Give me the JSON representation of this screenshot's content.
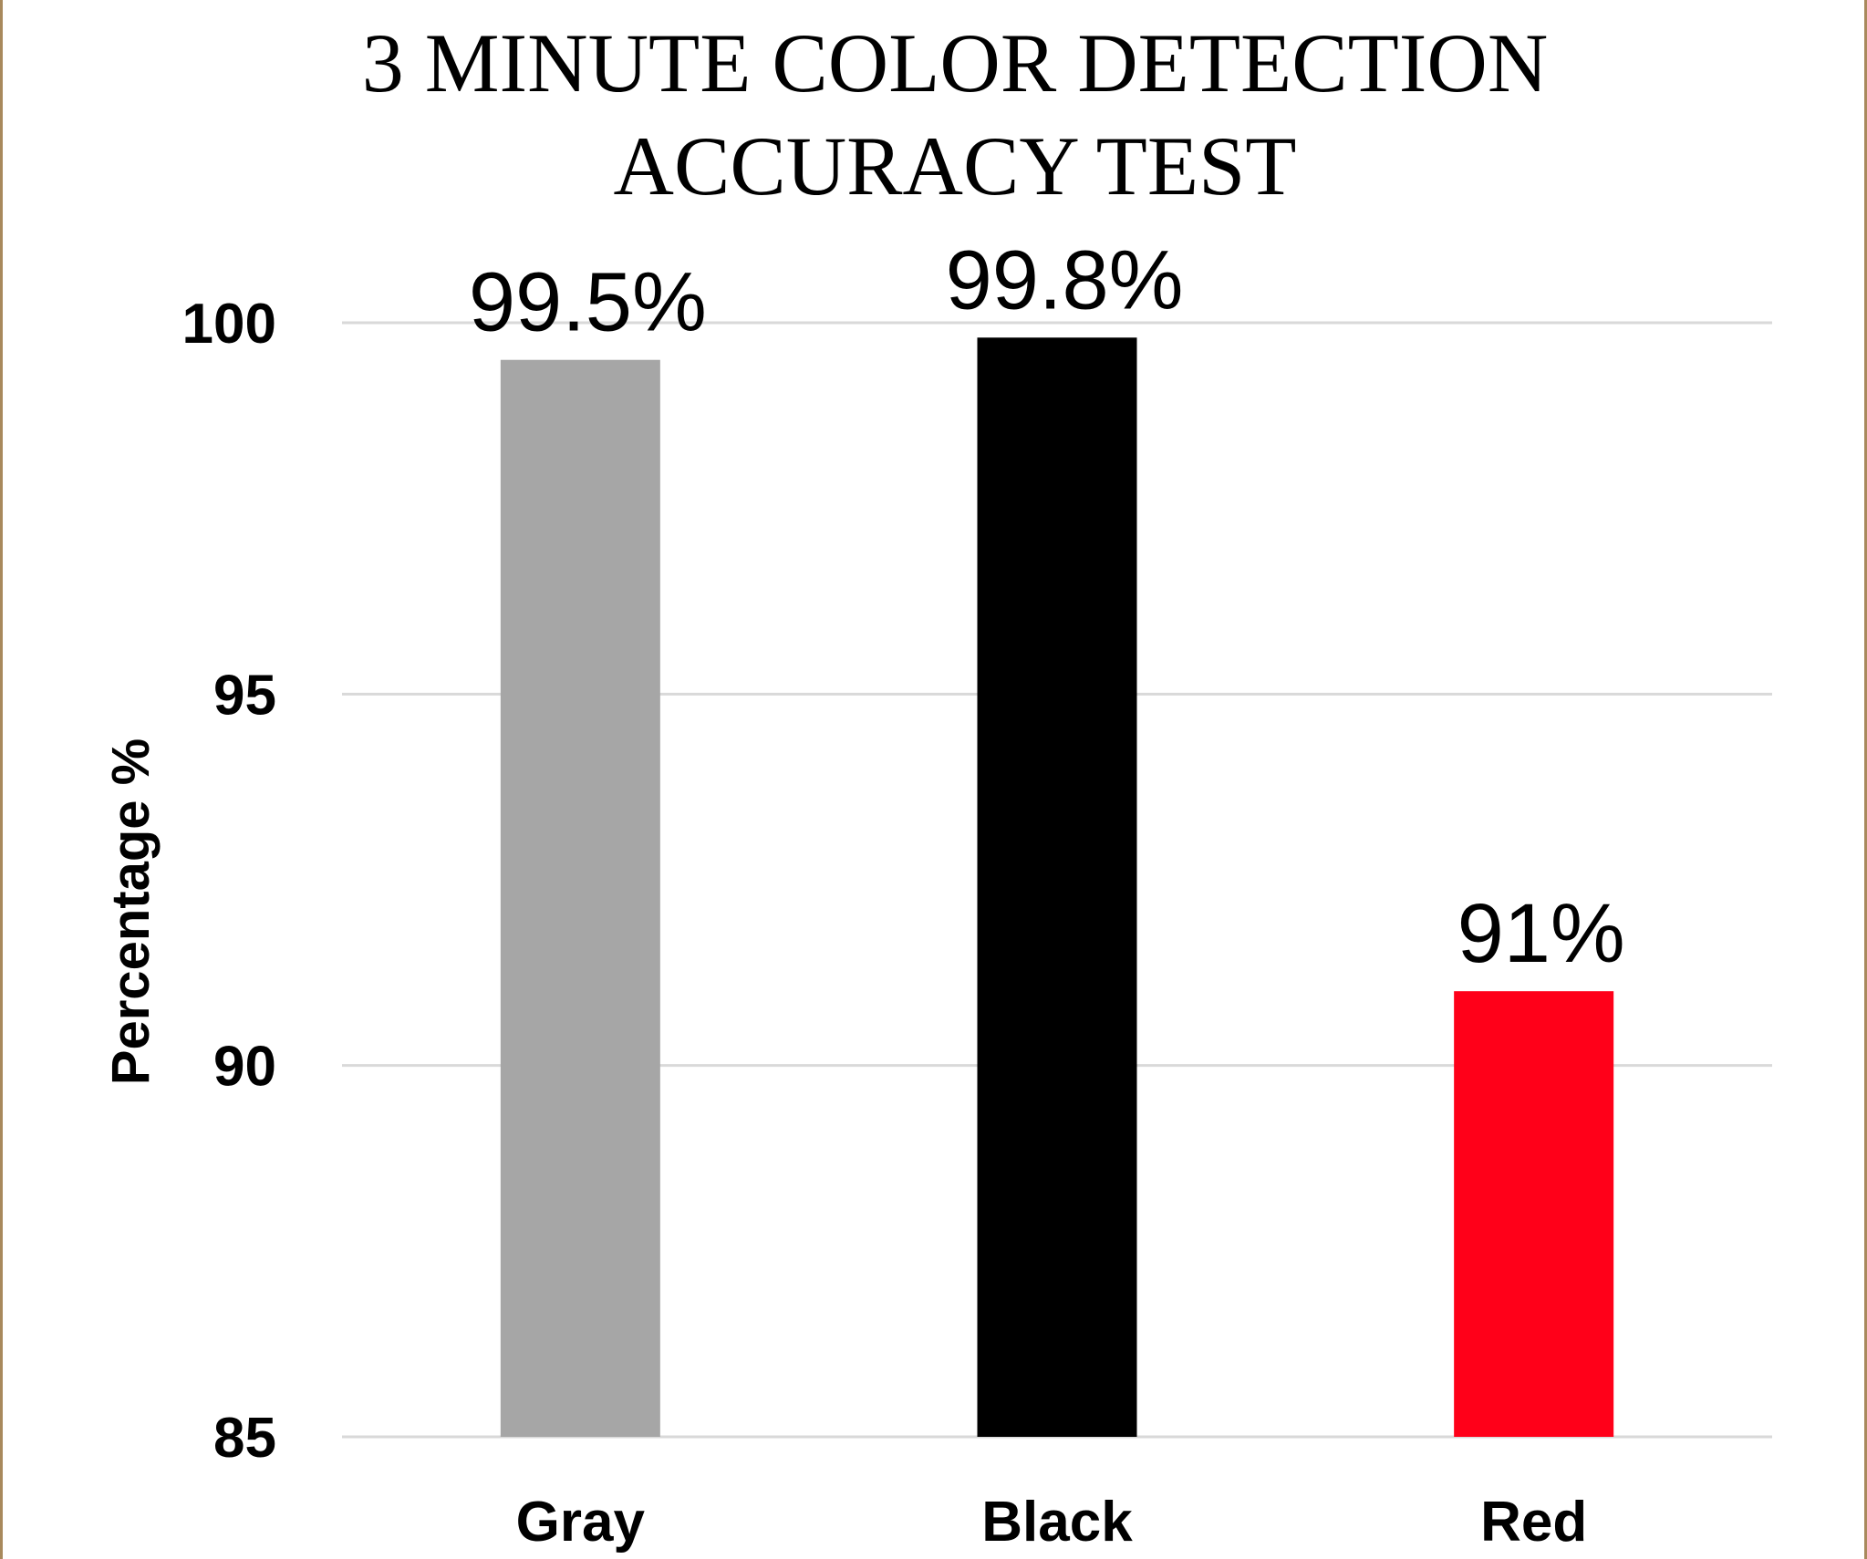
{
  "chart_data": {
    "type": "bar",
    "title_lines": [
      "3 MINUTE COLOR DETECTION",
      "ACCURACY TEST"
    ],
    "ylabel": "Percentage %",
    "xlabel": "",
    "categories": [
      "Gray",
      "Black",
      "Red"
    ],
    "values": [
      99.5,
      99.8,
      91
    ],
    "data_labels": [
      "99.5%",
      "99.8%",
      "91%"
    ],
    "bar_colors": [
      "#a6a6a6",
      "#000000",
      "#ff0019"
    ],
    "ylim": [
      85,
      100
    ],
    "yticks": [
      85,
      90,
      95,
      100
    ],
    "ytick_labels": [
      "85",
      "90",
      "95",
      "100"
    ],
    "grid": true,
    "gridline_color": "#d9d9d9",
    "legend": "none"
  }
}
